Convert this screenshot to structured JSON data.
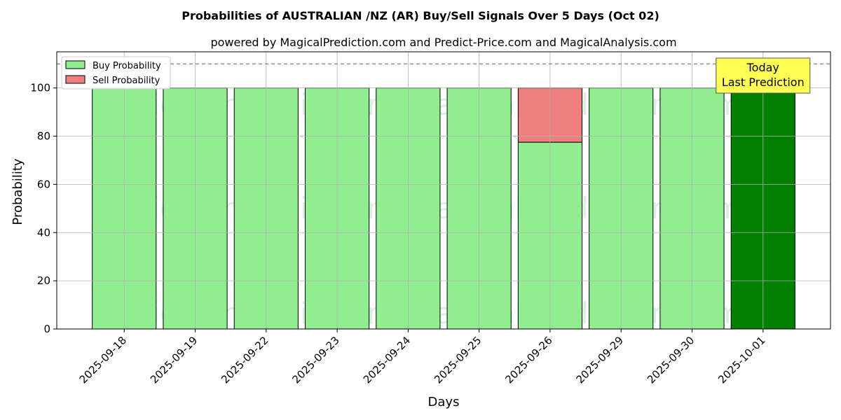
{
  "chart_data": {
    "type": "bar",
    "title": "Probabilities of AUSTRALIAN /NZ (AR) Buy/Sell Signals Over 5 Days (Oct 02)",
    "subtitle": "powered by MagicalPrediction.com and Predict-Price.com and MagicalAnalysis.com",
    "xlabel": "Days",
    "ylabel": "Probability",
    "ylim": [
      0,
      115
    ],
    "yticks": [
      0,
      20,
      40,
      60,
      80,
      100
    ],
    "reference_line": 110,
    "grid": true,
    "legend_position": "top-left",
    "categories": [
      "2025-09-18",
      "2025-09-19",
      "2025-09-22",
      "2025-09-23",
      "2025-09-24",
      "2025-09-25",
      "2025-09-26",
      "2025-09-29",
      "2025-09-30",
      "2025-10-01"
    ],
    "series": [
      {
        "name": "Buy Probability",
        "color": "#90ee90",
        "values": [
          100,
          100,
          100,
          100,
          100,
          100,
          77.5,
          100,
          100,
          100
        ]
      },
      {
        "name": "Sell Probability",
        "color": "#f08080",
        "values": [
          0,
          0,
          0,
          0,
          0,
          0,
          22.5,
          0,
          0,
          0
        ]
      }
    ],
    "highlight": {
      "index": 9,
      "color": "#008000"
    },
    "annotation": {
      "line1": "Today",
      "line2": "Last Prediction",
      "color": "#ffff55"
    },
    "watermarks": [
      "MagicalAnalysis.com",
      "MagicalPrediction.com"
    ]
  }
}
